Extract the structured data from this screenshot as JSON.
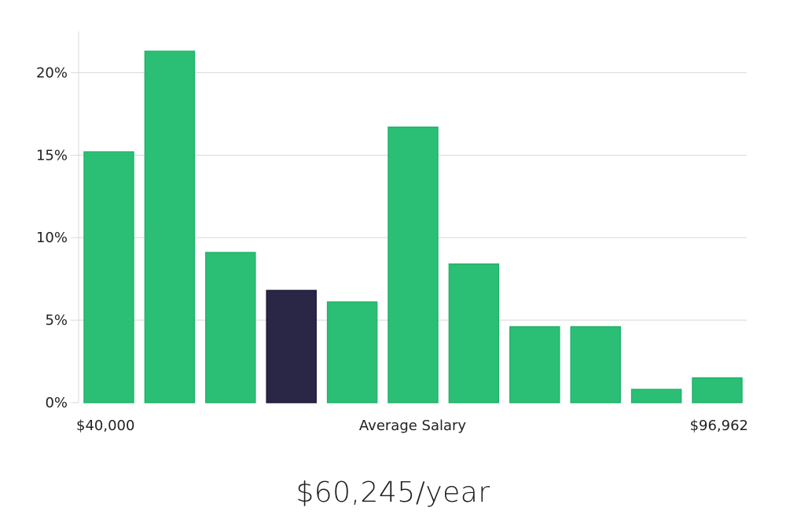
{
  "chart_data": {
    "type": "bar",
    "xlabel": "Average Salary",
    "x_min_label": "$40,000",
    "x_max_label": "$96,962",
    "values": [
      15.2,
      21.3,
      9.1,
      6.8,
      6.1,
      16.7,
      8.4,
      4.6,
      4.6,
      0.8,
      1.5
    ],
    "highlight_index": 3,
    "ylim": [
      0,
      22.5
    ],
    "yticks": [
      0,
      5,
      10,
      15,
      20
    ],
    "ytick_labels": [
      "0%",
      "5%",
      "10%",
      "15%",
      "20%"
    ],
    "grid": true,
    "colors": {
      "bar": "#2bbf76",
      "bar_stroke": "#22b36a",
      "highlight": "#2a2645",
      "highlight_stroke": "#1f1b3a"
    }
  },
  "salary_display": "$60,245/year"
}
